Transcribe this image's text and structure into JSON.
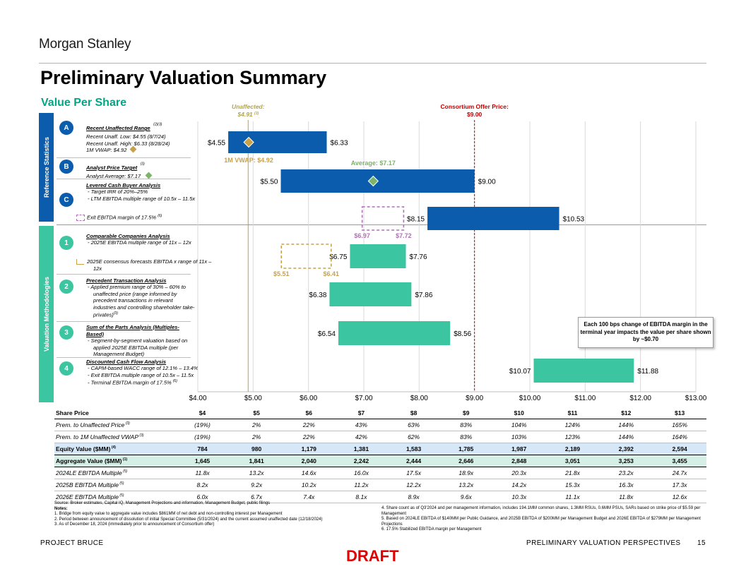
{
  "header": {
    "logo": "Morgan Stanley",
    "title": "Preliminary Valuation Summary",
    "subtitle": "Value Per Share"
  },
  "colors": {
    "blue": "#0b5cad",
    "teal": "#3cc5a1",
    "gold": "#c8a24a",
    "purple": "#b06fb8",
    "red": "#c00000",
    "olive": "#b3a54a"
  },
  "sections": {
    "reference": "Reference Statistics",
    "valuation": "Valuation Methodologies"
  },
  "rows": [
    {
      "badge": "A",
      "heading": "Recent Unaffected Range",
      "heading_sup": "(2)(3)",
      "lines": [
        "Recent Unaff. Low: $4.55 (8/7/24)",
        "Recent Unaff. High: $6.33 (8/28/24)",
        "1M VWAP: $4.92"
      ]
    },
    {
      "badge": "B",
      "heading": "Analyst Price Target",
      "heading_sup": "(3)",
      "lines": [
        "Analyst Average: $7.17"
      ]
    },
    {
      "badge": "C",
      "heading": "Levered Cash Buyer Analysis",
      "bullets": [
        "Target IRR of 20%–25%",
        "LTM EBITDA multiple range of 10.5x – 11.5x"
      ],
      "legend": "Exit EBITDA margin of 17.5%",
      "legend_sup": "(6)"
    },
    {
      "badge": "1",
      "heading": "Comparable Companies Analysis",
      "bullets": [
        "2025E EBITDA multiple range of 11x – 12x"
      ],
      "legend": "2025E consensus forecasts EBITDA x range of 11x – 12x"
    },
    {
      "badge": "2",
      "heading": "Precedent Transaction Analysis",
      "bullets": [
        "Applied premium range of 30% – 60% to unaffected price (range informed by precedent transactions in relevant industries and controlling shareholder take-privates)"
      ],
      "bullet_sup": "(3)"
    },
    {
      "badge": "3",
      "heading": "Sum of the Parts Analysis (Multiples-Based)",
      "bullets": [
        "Segment-by-segment valuation based on applied 2025E EBITDA multiple (per Management Budget)"
      ]
    },
    {
      "badge": "4",
      "heading": "Discounted Cash Flow Analysis",
      "bullets": [
        "CAPM-based WACC range of 12.1% – 13.4%",
        "Exit EBITDA multiple range of 10.5x – 11.5x",
        "Terminal EBITDA margin of 17.5%"
      ],
      "last_sup": "(6)"
    }
  ],
  "chart_data": {
    "type": "bar",
    "orientation": "horizontal-floating",
    "title": "Value Per Share",
    "xlim": [
      4,
      13
    ],
    "x_ticks": [
      "$4.00",
      "$5.00",
      "$6.00",
      "$7.00",
      "$8.00",
      "$9.00",
      "$10.00",
      "$11.00",
      "$12.00",
      "$13.00"
    ],
    "x_tick_values": [
      4,
      5,
      6,
      7,
      8,
      9,
      10,
      11,
      12,
      13
    ],
    "bars": [
      {
        "id": "A",
        "low": 4.55,
        "high": 6.33,
        "low_label": "$4.55",
        "high_label": "$6.33",
        "color": "blue"
      },
      {
        "id": "B",
        "low": 5.5,
        "high": 9.0,
        "low_label": "$5.50",
        "high_label": "$9.00",
        "color": "blue"
      },
      {
        "id": "C",
        "low": 8.15,
        "high": 10.53,
        "low_label": "$8.15",
        "high_label": "$10.53",
        "color": "blue"
      },
      {
        "id": "1",
        "low": 6.75,
        "high": 7.76,
        "low_label": "$6.75",
        "high_label": "$7.76",
        "color": "teal"
      },
      {
        "id": "2",
        "low": 6.38,
        "high": 7.86,
        "low_label": "$6.38",
        "high_label": "$7.86",
        "color": "teal"
      },
      {
        "id": "3",
        "low": 6.54,
        "high": 8.56,
        "low_label": "$6.54",
        "high_label": "$8.56",
        "color": "teal"
      },
      {
        "id": "4",
        "low": 10.07,
        "high": 11.88,
        "low_label": "$10.07",
        "high_label": "$11.88",
        "color": "teal"
      }
    ],
    "dashed_boxes": [
      {
        "row": "C",
        "low": 6.97,
        "high": 7.72,
        "low_label": "$6.97",
        "high_label": "$7.72",
        "color": "purple"
      },
      {
        "row": "1",
        "low": 5.51,
        "high": 6.41,
        "low_label": "$5.51",
        "high_label": "$6.41",
        "color": "gold"
      }
    ],
    "markers": [
      {
        "row": "A",
        "value": 4.92,
        "label": "1M VWAP: $4.92",
        "color": "gold"
      },
      {
        "row": "B",
        "value": 7.17,
        "label": "Average: $7.17",
        "color": "green"
      }
    ],
    "reference_lines": [
      {
        "value": 4.91,
        "label": "Unaffected:",
        "value_label": "$4.91",
        "sup": "(3)",
        "color": "olive"
      },
      {
        "value": 9.0,
        "label": "Consortium Offer Price:",
        "value_label": "$9.00",
        "color": "red"
      }
    ],
    "callout": "Each 100 bps change of EBITDA margin in the terminal year impacts the value per share shown by ~$0.70"
  },
  "table": {
    "header": {
      "label": "Share Price",
      "values": [
        "$4",
        "$5",
        "$6",
        "$7",
        "$8",
        "$9",
        "$10",
        "$11",
        "$12",
        "$13"
      ]
    },
    "rows": [
      {
        "label": "Prem. to Unaffected Price",
        "sup": "(3)",
        "style": "it",
        "values": [
          "(19%)",
          "2%",
          "22%",
          "43%",
          "63%",
          "83%",
          "104%",
          "124%",
          "144%",
          "165%"
        ]
      },
      {
        "label": "Prem. to 1M Unaffected VWAP",
        "sup": "(3)",
        "style": "it",
        "values": [
          "(19%)",
          "2%",
          "22%",
          "42%",
          "62%",
          "83%",
          "103%",
          "123%",
          "144%",
          "164%"
        ]
      },
      {
        "label": "Equity Value ($MM)",
        "sup": "(4)",
        "style": "eq",
        "values": [
          "784",
          "980",
          "1,179",
          "1,381",
          "1,583",
          "1,785",
          "1,987",
          "2,189",
          "2,392",
          "2,594"
        ]
      },
      {
        "label": "Aggregate Value ($MM)",
        "sup": "(1)",
        "style": "ag",
        "values": [
          "1,645",
          "1,841",
          "2,040",
          "2,242",
          "2,444",
          "2,646",
          "2,848",
          "3,051",
          "3,253",
          "3,455"
        ]
      },
      {
        "label": "2024LE EBITDA Multiple",
        "sup": "(5)",
        "style": "it",
        "values": [
          "11.8x",
          "13.2x",
          "14.6x",
          "16.0x",
          "17.5x",
          "18.9x",
          "20.3x",
          "21.8x",
          "23.2x",
          "24.7x"
        ]
      },
      {
        "label": "2025B EBITDA Multiple",
        "sup": "(5)",
        "style": "it",
        "values": [
          "8.2x",
          "9.2x",
          "10.2x",
          "11.2x",
          "12.2x",
          "13.2x",
          "14.2x",
          "15.3x",
          "16.3x",
          "17.3x"
        ]
      },
      {
        "label": "2026E EBITDA Multiple",
        "sup": "(5)",
        "style": "it",
        "values": [
          "6.0x",
          "6.7x",
          "7.4x",
          "8.1x",
          "8.9x",
          "9.6x",
          "10.3x",
          "11.1x",
          "11.8x",
          "12.6x"
        ]
      }
    ]
  },
  "notes": {
    "source": "Source: Broker estimates, Capital IQ, Management Projections and information, Management Budget, public filings",
    "heading": "Notes:",
    "left": [
      "1.  Bridge from equity value to aggregate value includes $861MM of net debt and non-controlling interest per Management",
      "2.  Period between announcement of dissolution of initial Special Committee (5/31/2024) and the current assumed unaffected date (12/18/2024)",
      "3.  As of December 18, 2024 (immediately prior to announcement of Consortium offer)"
    ],
    "right": [
      "4.  Share count as of Q3'2024 and per management information, includes 194.1MM common shares, 1.3MM RSUs, 0.6MM PSUs, SARs based on strike price of $5.59 per Management",
      "5.  Based on 2024LE EBITDA of $140MM per Public Guidance, and 2025B EBITDA of $200MM per Management Budget and 2026E EBITDA of $279MM per Management Projections",
      "6.  17.5% Stabilized EBITDA margin per Management"
    ]
  },
  "footer": {
    "left": "PROJECT BRUCE",
    "right": "PRELIMINARY VALUATION PERSPECTIVES",
    "page": "15",
    "draft": "DRAFT"
  }
}
